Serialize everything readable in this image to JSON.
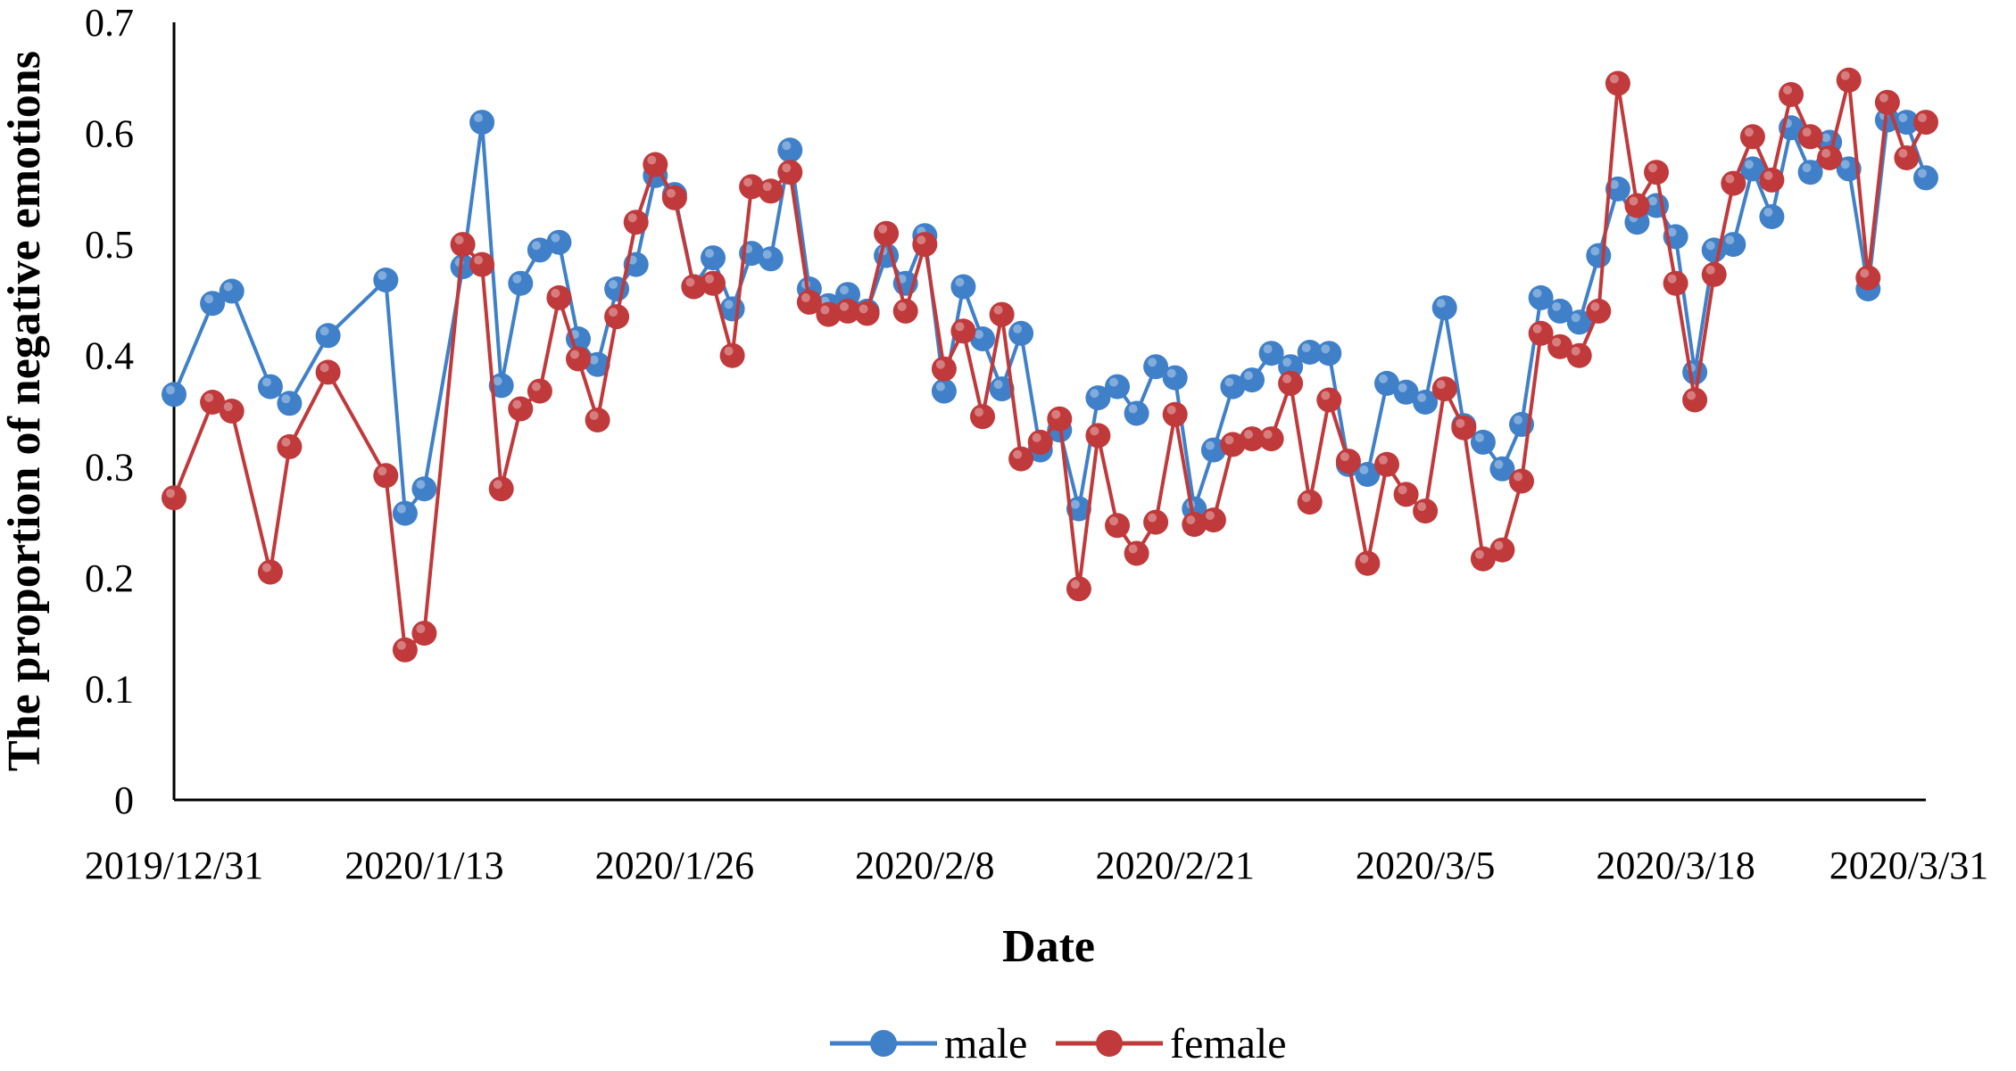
{
  "chart_data": {
    "type": "line",
    "title": "",
    "xlabel": "Date",
    "ylabel": "The proportion of negative emotions",
    "ylim": [
      0,
      0.7
    ],
    "yticks": [
      "0",
      "0.1",
      "0.2",
      "0.3",
      "0.4",
      "0.5",
      "0.6",
      "0.7"
    ],
    "xticks": [
      "2019/12/31",
      "2020/1/13",
      "2020/1/26",
      "2020/2/8",
      "2020/2/21",
      "2020/3/5",
      "2020/3/18",
      "2020/3/31"
    ],
    "x_start": "2019/12/31",
    "x_end": "2020/3/31",
    "grid": false,
    "legend": "bottom",
    "series": [
      {
        "name": "male",
        "color": "#3f80c8",
        "points": [
          [
            "2019/12/31",
            0.365
          ],
          [
            "2020/1/2",
            0.447
          ],
          [
            "2020/1/3",
            0.458
          ],
          [
            "2020/1/5",
            0.372
          ],
          [
            "2020/1/6",
            0.357
          ],
          [
            "2020/1/8",
            0.418
          ],
          [
            "2020/1/11",
            0.468
          ],
          [
            "2020/1/12",
            0.258
          ],
          [
            "2020/1/13",
            0.28
          ],
          [
            "2020/1/15",
            0.48
          ],
          [
            "2020/1/16",
            0.61
          ],
          [
            "2020/1/17",
            0.373
          ],
          [
            "2020/1/18",
            0.465
          ],
          [
            "2020/1/19",
            0.495
          ],
          [
            "2020/1/20",
            0.502
          ],
          [
            "2020/1/21",
            0.415
          ],
          [
            "2020/1/22",
            0.392
          ],
          [
            "2020/1/23",
            0.46
          ],
          [
            "2020/1/24",
            0.482
          ],
          [
            "2020/1/25",
            0.562
          ],
          [
            "2020/1/26",
            0.545
          ],
          [
            "2020/1/27",
            0.462
          ],
          [
            "2020/1/28",
            0.488
          ],
          [
            "2020/1/29",
            0.442
          ],
          [
            "2020/1/30",
            0.492
          ],
          [
            "2020/1/31",
            0.487
          ],
          [
            "2020/2/1",
            0.585
          ],
          [
            "2020/2/2",
            0.46
          ],
          [
            "2020/2/3",
            0.445
          ],
          [
            "2020/2/4",
            0.455
          ],
          [
            "2020/2/5",
            0.44
          ],
          [
            "2020/2/6",
            0.49
          ],
          [
            "2020/2/7",
            0.465
          ],
          [
            "2020/2/8",
            0.508
          ],
          [
            "2020/2/9",
            0.368
          ],
          [
            "2020/2/10",
            0.462
          ],
          [
            "2020/2/11",
            0.415
          ],
          [
            "2020/2/12",
            0.37
          ],
          [
            "2020/2/13",
            0.42
          ],
          [
            "2020/2/14",
            0.315
          ],
          [
            "2020/2/15",
            0.333
          ],
          [
            "2020/2/16",
            0.262
          ],
          [
            "2020/2/17",
            0.362
          ],
          [
            "2020/2/18",
            0.372
          ],
          [
            "2020/2/19",
            0.348
          ],
          [
            "2020/2/20",
            0.39
          ],
          [
            "2020/2/21",
            0.38
          ],
          [
            "2020/2/22",
            0.262
          ],
          [
            "2020/2/23",
            0.315
          ],
          [
            "2020/2/24",
            0.372
          ],
          [
            "2020/2/25",
            0.378
          ],
          [
            "2020/2/26",
            0.402
          ],
          [
            "2020/2/27",
            0.39
          ],
          [
            "2020/2/28",
            0.403
          ],
          [
            "2020/2/29",
            0.402
          ],
          [
            "2020/3/1",
            0.302
          ],
          [
            "2020/3/2",
            0.293
          ],
          [
            "2020/3/3",
            0.375
          ],
          [
            "2020/3/4",
            0.367
          ],
          [
            "2020/3/5",
            0.358
          ],
          [
            "2020/3/6",
            0.443
          ],
          [
            "2020/3/7",
            0.337
          ],
          [
            "2020/3/8",
            0.322
          ],
          [
            "2020/3/9",
            0.298
          ],
          [
            "2020/3/10",
            0.338
          ],
          [
            "2020/3/11",
            0.452
          ],
          [
            "2020/3/12",
            0.44
          ],
          [
            "2020/3/13",
            0.43
          ],
          [
            "2020/3/14",
            0.49
          ],
          [
            "2020/3/15",
            0.55
          ],
          [
            "2020/3/16",
            0.52
          ],
          [
            "2020/3/17",
            0.535
          ],
          [
            "2020/3/18",
            0.507
          ],
          [
            "2020/3/19",
            0.385
          ],
          [
            "2020/3/20",
            0.495
          ],
          [
            "2020/3/21",
            0.5
          ],
          [
            "2020/3/22",
            0.568
          ],
          [
            "2020/3/23",
            0.525
          ],
          [
            "2020/3/24",
            0.605
          ],
          [
            "2020/3/25",
            0.565
          ],
          [
            "2020/3/26",
            0.592
          ],
          [
            "2020/3/27",
            0.568
          ],
          [
            "2020/3/28",
            0.46
          ],
          [
            "2020/3/29",
            0.612
          ],
          [
            "2020/3/30",
            0.61
          ],
          [
            "2020/3/31",
            0.56
          ]
        ]
      },
      {
        "name": "female",
        "color": "#c0393b",
        "points": [
          [
            "2019/12/31",
            0.272
          ],
          [
            "2020/1/2",
            0.358
          ],
          [
            "2020/1/3",
            0.35
          ],
          [
            "2020/1/5",
            0.205
          ],
          [
            "2020/1/6",
            0.318
          ],
          [
            "2020/1/8",
            0.385
          ],
          [
            "2020/1/11",
            0.292
          ],
          [
            "2020/1/12",
            0.135
          ],
          [
            "2020/1/13",
            0.15
          ],
          [
            "2020/1/15",
            0.5
          ],
          [
            "2020/1/16",
            0.482
          ],
          [
            "2020/1/17",
            0.28
          ],
          [
            "2020/1/18",
            0.352
          ],
          [
            "2020/1/19",
            0.368
          ],
          [
            "2020/1/20",
            0.452
          ],
          [
            "2020/1/21",
            0.397
          ],
          [
            "2020/1/22",
            0.342
          ],
          [
            "2020/1/23",
            0.435
          ],
          [
            "2020/1/24",
            0.52
          ],
          [
            "2020/1/25",
            0.572
          ],
          [
            "2020/1/26",
            0.542
          ],
          [
            "2020/1/27",
            0.462
          ],
          [
            "2020/1/28",
            0.465
          ],
          [
            "2020/1/29",
            0.4
          ],
          [
            "2020/1/30",
            0.552
          ],
          [
            "2020/1/31",
            0.548
          ],
          [
            "2020/2/1",
            0.565
          ],
          [
            "2020/2/2",
            0.448
          ],
          [
            "2020/2/3",
            0.437
          ],
          [
            "2020/2/4",
            0.44
          ],
          [
            "2020/2/5",
            0.438
          ],
          [
            "2020/2/6",
            0.51
          ],
          [
            "2020/2/7",
            0.44
          ],
          [
            "2020/2/8",
            0.5
          ],
          [
            "2020/2/9",
            0.388
          ],
          [
            "2020/2/10",
            0.422
          ],
          [
            "2020/2/11",
            0.345
          ],
          [
            "2020/2/12",
            0.437
          ],
          [
            "2020/2/13",
            0.307
          ],
          [
            "2020/2/14",
            0.322
          ],
          [
            "2020/2/15",
            0.343
          ],
          [
            "2020/2/16",
            0.19
          ],
          [
            "2020/2/17",
            0.328
          ],
          [
            "2020/2/18",
            0.247
          ],
          [
            "2020/2/19",
            0.222
          ],
          [
            "2020/2/20",
            0.25
          ],
          [
            "2020/2/21",
            0.347
          ],
          [
            "2020/2/22",
            0.248
          ],
          [
            "2020/2/23",
            0.252
          ],
          [
            "2020/2/24",
            0.32
          ],
          [
            "2020/2/25",
            0.325
          ],
          [
            "2020/2/26",
            0.325
          ],
          [
            "2020/2/27",
            0.375
          ],
          [
            "2020/2/28",
            0.268
          ],
          [
            "2020/2/29",
            0.36
          ],
          [
            "2020/3/1",
            0.305
          ],
          [
            "2020/3/2",
            0.213
          ],
          [
            "2020/3/3",
            0.302
          ],
          [
            "2020/3/4",
            0.275
          ],
          [
            "2020/3/5",
            0.26
          ],
          [
            "2020/3/6",
            0.37
          ],
          [
            "2020/3/7",
            0.335
          ],
          [
            "2020/3/8",
            0.217
          ],
          [
            "2020/3/9",
            0.225
          ],
          [
            "2020/3/10",
            0.287
          ],
          [
            "2020/3/11",
            0.42
          ],
          [
            "2020/3/12",
            0.408
          ],
          [
            "2020/3/13",
            0.4
          ],
          [
            "2020/3/14",
            0.44
          ],
          [
            "2020/3/15",
            0.645
          ],
          [
            "2020/3/16",
            0.535
          ],
          [
            "2020/3/17",
            0.565
          ],
          [
            "2020/3/18",
            0.465
          ],
          [
            "2020/3/19",
            0.36
          ],
          [
            "2020/3/20",
            0.473
          ],
          [
            "2020/3/21",
            0.555
          ],
          [
            "2020/3/22",
            0.597
          ],
          [
            "2020/3/23",
            0.558
          ],
          [
            "2020/3/24",
            0.635
          ],
          [
            "2020/3/25",
            0.597
          ],
          [
            "2020/3/26",
            0.578
          ],
          [
            "2020/3/27",
            0.648
          ],
          [
            "2020/3/28",
            0.47
          ],
          [
            "2020/3/29",
            0.628
          ],
          [
            "2020/3/30",
            0.578
          ],
          [
            "2020/3/31",
            0.61
          ]
        ]
      }
    ]
  }
}
